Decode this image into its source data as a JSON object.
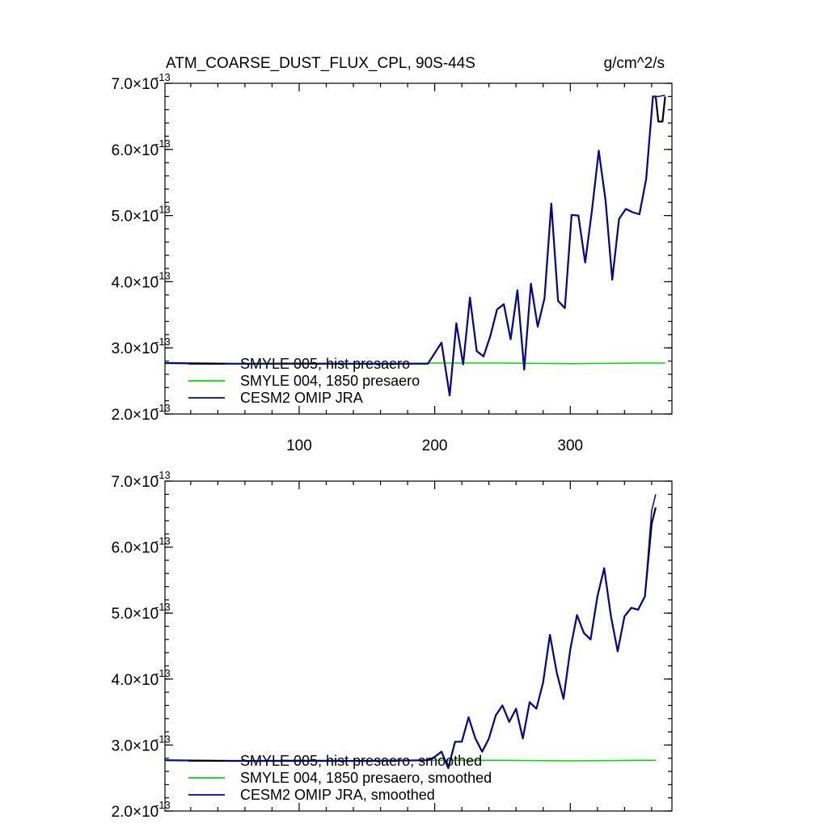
{
  "chart_data": [
    {
      "type": "line",
      "title": "ATM_COARSE_DUST_FLUX_CPL, 90S-44S",
      "units": "g/cm^2/s",
      "xlim": [
        1,
        375
      ],
      "ylim": [
        2e-13,
        7e-13
      ],
      "y_ticks": [
        {
          "mant": "2.0",
          "exp": "-13"
        },
        {
          "mant": "3.0",
          "exp": "-13"
        },
        {
          "mant": "4.0",
          "exp": "-13"
        },
        {
          "mant": "5.0",
          "exp": "-13"
        },
        {
          "mant": "6.0",
          "exp": "-13"
        },
        {
          "mant": "7.0",
          "exp": "-13"
        }
      ],
      "x_tick_labels": [
        "100",
        "200",
        "300"
      ],
      "x_tick_values": [
        100,
        200,
        300
      ],
      "series": [
        {
          "name": "SMYLE 005, hist presaero",
          "color": "#000000",
          "x": [
            1,
            50,
            100,
            150,
            195,
            205,
            211,
            216,
            221,
            226,
            231,
            236,
            241,
            246,
            251,
            256,
            261,
            266,
            271,
            276,
            281,
            286,
            291,
            296,
            301,
            306,
            311,
            316,
            321,
            326,
            331,
            336,
            341,
            346,
            351,
            356,
            361,
            363,
            365,
            368,
            370
          ],
          "values": [
            2.77e-13,
            2.76e-13,
            2.76e-13,
            2.76e-13,
            2.76e-13,
            3.08e-13,
            2.28e-13,
            3.37e-13,
            2.75e-13,
            3.76e-13,
            2.95e-13,
            2.87e-13,
            3.18e-13,
            3.58e-13,
            3.66e-13,
            3.13e-13,
            3.87e-13,
            2.67e-13,
            3.97e-13,
            3.32e-13,
            3.75e-13,
            5.18e-13,
            3.71e-13,
            3.6e-13,
            5.01e-13,
            5e-13,
            4.29e-13,
            5.08e-13,
            5.98e-13,
            5.23e-13,
            4.03e-13,
            4.95e-13,
            5.1e-13,
            5.05e-13,
            5.02e-13,
            5.55e-13,
            6.8e-13,
            6.8e-13,
            6.42e-13,
            6.42e-13,
            6.8e-13
          ]
        },
        {
          "name": "SMYLE 004, 1850 presaero",
          "color": "#00dd00",
          "x": [
            1,
            50,
            100,
            150,
            200,
            250,
            300,
            350,
            370
          ],
          "values": [
            2.77e-13,
            2.76e-13,
            2.77e-13,
            2.76e-13,
            2.77e-13,
            2.77e-13,
            2.76e-13,
            2.77e-13,
            2.77e-13
          ]
        },
        {
          "name": "CESM2 OMIP JRA",
          "color": "#0000cc",
          "x": [
            1,
            50,
            100,
            150,
            195,
            205,
            211,
            216,
            221,
            226,
            231,
            236,
            241,
            246,
            251,
            256,
            261,
            266,
            271,
            276,
            281,
            286,
            291,
            296,
            301,
            306,
            311,
            316,
            321,
            326,
            331,
            336,
            341,
            346,
            351,
            356,
            361,
            365,
            370
          ],
          "values": [
            2.77e-13,
            2.76e-13,
            2.76e-13,
            2.76e-13,
            2.76e-13,
            3.08e-13,
            2.28e-13,
            3.37e-13,
            2.75e-13,
            3.76e-13,
            2.95e-13,
            2.87e-13,
            3.18e-13,
            3.58e-13,
            3.66e-13,
            3.13e-13,
            3.87e-13,
            2.67e-13,
            3.97e-13,
            3.32e-13,
            3.75e-13,
            5.18e-13,
            3.71e-13,
            3.6e-13,
            5.01e-13,
            5e-13,
            4.29e-13,
            5.08e-13,
            5.98e-13,
            5.23e-13,
            4.03e-13,
            4.95e-13,
            5.1e-13,
            5.05e-13,
            5.02e-13,
            5.55e-13,
            6.8e-13,
            6.8e-13,
            6.82e-13
          ]
        }
      ]
    },
    {
      "type": "line",
      "xlim": [
        1,
        375
      ],
      "ylim": [
        2e-13,
        7e-13
      ],
      "y_ticks": [
        {
          "mant": "2.0",
          "exp": "-13"
        },
        {
          "mant": "3.0",
          "exp": "-13"
        },
        {
          "mant": "4.0",
          "exp": "-13"
        },
        {
          "mant": "5.0",
          "exp": "-13"
        },
        {
          "mant": "6.0",
          "exp": "-13"
        },
        {
          "mant": "7.0",
          "exp": "-13"
        }
      ],
      "x_tick_values": [
        100,
        200,
        300
      ],
      "series": [
        {
          "name": "SMYLE 005, hist presaero, smoothed",
          "color": "#000000",
          "x": [
            1,
            50,
            100,
            150,
            195,
            200,
            205,
            210,
            215,
            220,
            225,
            230,
            235,
            240,
            245,
            250,
            255,
            260,
            265,
            270,
            275,
            280,
            285,
            290,
            295,
            300,
            305,
            310,
            315,
            320,
            325,
            330,
            335,
            340,
            345,
            350,
            355,
            360,
            363
          ],
          "values": [
            2.77e-13,
            2.76e-13,
            2.76e-13,
            2.76e-13,
            2.77e-13,
            2.82e-13,
            2.9e-13,
            2.65e-13,
            3.05e-13,
            3.05e-13,
            3.42e-13,
            3.1e-13,
            2.9e-13,
            3.1e-13,
            3.45e-13,
            3.6e-13,
            3.35e-13,
            3.55e-13,
            3.1e-13,
            3.65e-13,
            3.55e-13,
            3.95e-13,
            4.67e-13,
            4.1e-13,
            3.7e-13,
            4.45e-13,
            4.97e-13,
            4.7e-13,
            4.6e-13,
            5.25e-13,
            5.68e-13,
            4.95e-13,
            4.42e-13,
            4.95e-13,
            5.08e-13,
            5.05e-13,
            5.25e-13,
            6.35e-13,
            6.6e-13
          ]
        },
        {
          "name": "SMYLE 004, 1850 presaero, smoothed",
          "color": "#00dd00",
          "x": [
            1,
            50,
            100,
            150,
            200,
            250,
            300,
            350,
            363
          ],
          "values": [
            2.77e-13,
            2.76e-13,
            2.77e-13,
            2.76e-13,
            2.77e-13,
            2.77e-13,
            2.76e-13,
            2.77e-13,
            2.77e-13
          ]
        },
        {
          "name": "CESM2 OMIP JRA, smoothed",
          "color": "#0000cc",
          "x": [
            1,
            50,
            100,
            150,
            195,
            200,
            205,
            210,
            215,
            220,
            225,
            230,
            235,
            240,
            245,
            250,
            255,
            260,
            265,
            270,
            275,
            280,
            285,
            290,
            295,
            300,
            305,
            310,
            315,
            320,
            325,
            330,
            335,
            340,
            345,
            350,
            355,
            360,
            363
          ],
          "values": [
            2.77e-13,
            2.76e-13,
            2.76e-13,
            2.76e-13,
            2.77e-13,
            2.82e-13,
            2.9e-13,
            2.65e-13,
            3.05e-13,
            3.05e-13,
            3.42e-13,
            3.1e-13,
            2.9e-13,
            3.1e-13,
            3.45e-13,
            3.6e-13,
            3.35e-13,
            3.55e-13,
            3.1e-13,
            3.65e-13,
            3.55e-13,
            3.95e-13,
            4.67e-13,
            4.1e-13,
            3.7e-13,
            4.45e-13,
            4.97e-13,
            4.7e-13,
            4.6e-13,
            5.25e-13,
            5.68e-13,
            4.95e-13,
            4.42e-13,
            4.95e-13,
            5.08e-13,
            5.05e-13,
            5.25e-13,
            6.55e-13,
            6.8e-13
          ]
        }
      ]
    }
  ]
}
